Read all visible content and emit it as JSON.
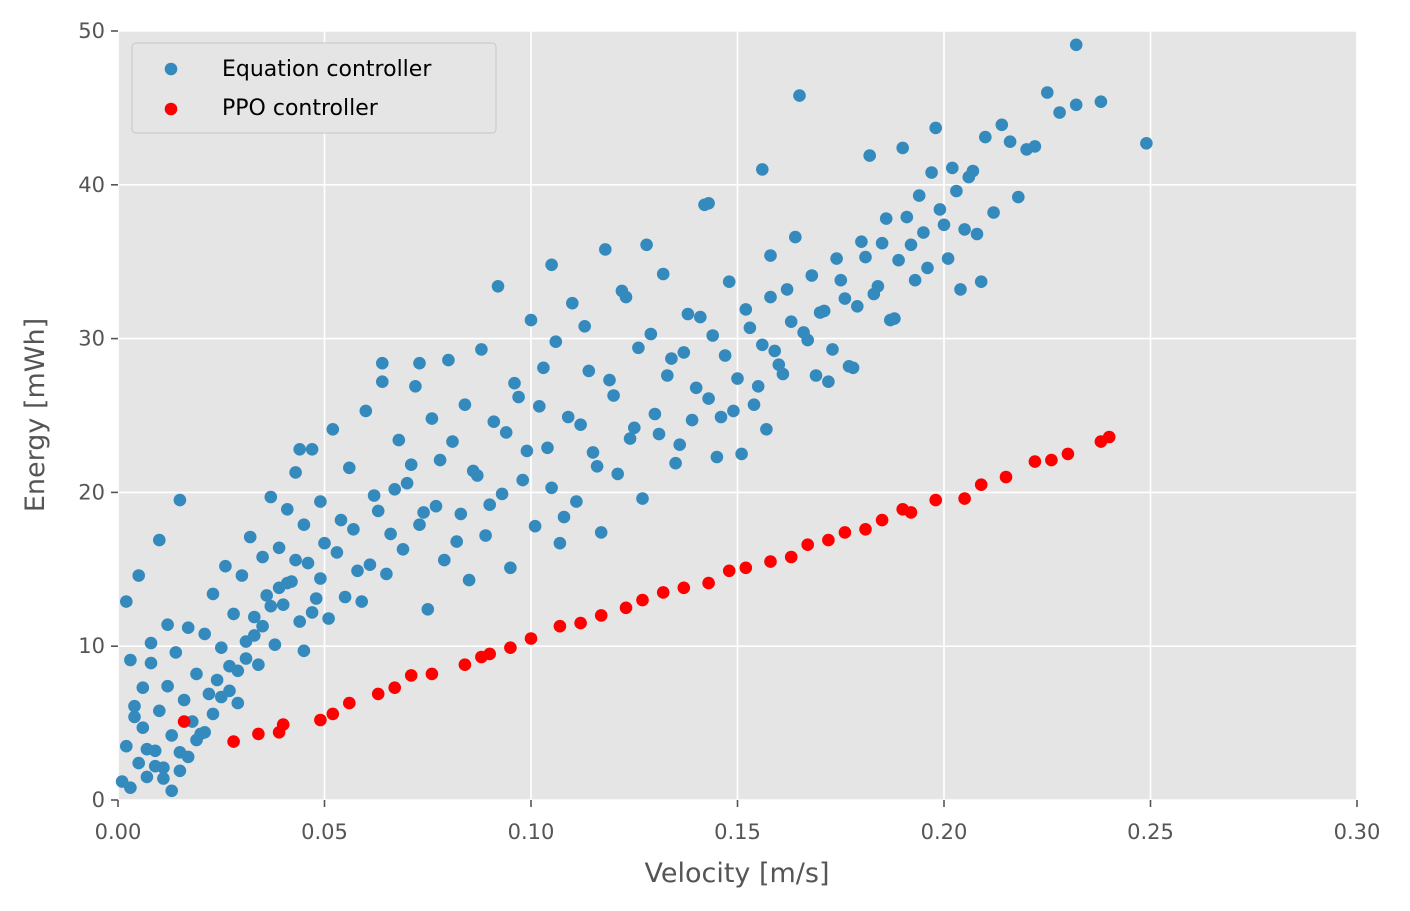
{
  "chart_data": {
    "type": "scatter",
    "title": "",
    "xlabel": "Velocity [m/s]",
    "ylabel": "Energy [mWh]",
    "xlim": [
      0,
      0.3
    ],
    "ylim": [
      0,
      50
    ],
    "xticks": [
      "0.00",
      "0.05",
      "0.10",
      "0.15",
      "0.20",
      "0.25",
      "0.30"
    ],
    "yticks": [
      "0",
      "10",
      "20",
      "30",
      "40",
      "50"
    ],
    "grid": true,
    "legend_position": "top-left",
    "background": "#e5e5e5",
    "series": [
      {
        "name": "Equation controller",
        "color": "#348abd",
        "points": [
          [
            0.001,
            1.2
          ],
          [
            0.002,
            3.5
          ],
          [
            0.003,
            0.8
          ],
          [
            0.004,
            6.1
          ],
          [
            0.005,
            2.4
          ],
          [
            0.006,
            4.7
          ],
          [
            0.007,
            1.5
          ],
          [
            0.008,
            8.9
          ],
          [
            0.009,
            3.2
          ],
          [
            0.01,
            5.8
          ],
          [
            0.011,
            2.1
          ],
          [
            0.012,
            7.4
          ],
          [
            0.013,
            4.2
          ],
          [
            0.014,
            9.6
          ],
          [
            0.015,
            3.1
          ],
          [
            0.016,
            6.5
          ],
          [
            0.017,
            11.2
          ],
          [
            0.018,
            5.1
          ],
          [
            0.019,
            8.2
          ],
          [
            0.02,
            4.3
          ],
          [
            0.021,
            10.8
          ],
          [
            0.022,
            6.9
          ],
          [
            0.023,
            13.4
          ],
          [
            0.024,
            7.8
          ],
          [
            0.025,
            9.9
          ],
          [
            0.026,
            15.2
          ],
          [
            0.027,
            8.7
          ],
          [
            0.028,
            12.1
          ],
          [
            0.029,
            6.3
          ],
          [
            0.03,
            14.6
          ],
          [
            0.031,
            10.3
          ],
          [
            0.032,
            17.1
          ],
          [
            0.033,
            11.9
          ],
          [
            0.034,
            8.8
          ],
          [
            0.035,
            15.8
          ],
          [
            0.036,
            13.3
          ],
          [
            0.037,
            19.7
          ],
          [
            0.038,
            10.1
          ],
          [
            0.039,
            16.4
          ],
          [
            0.04,
            12.7
          ],
          [
            0.041,
            18.9
          ],
          [
            0.042,
            14.2
          ],
          [
            0.043,
            21.3
          ],
          [
            0.044,
            11.6
          ],
          [
            0.045,
            17.9
          ],
          [
            0.046,
            15.4
          ],
          [
            0.047,
            22.8
          ],
          [
            0.048,
            13.1
          ],
          [
            0.049,
            19.4
          ],
          [
            0.05,
            16.7
          ],
          [
            0.052,
            24.1
          ],
          [
            0.054,
            18.2
          ],
          [
            0.056,
            21.6
          ],
          [
            0.058,
            14.9
          ],
          [
            0.06,
            25.3
          ],
          [
            0.062,
            19.8
          ],
          [
            0.064,
            27.2
          ],
          [
            0.066,
            17.3
          ],
          [
            0.068,
            23.4
          ],
          [
            0.07,
            20.6
          ],
          [
            0.072,
            26.9
          ],
          [
            0.074,
            18.7
          ],
          [
            0.076,
            24.8
          ],
          [
            0.078,
            22.1
          ],
          [
            0.08,
            28.6
          ],
          [
            0.082,
            16.8
          ],
          [
            0.084,
            25.7
          ],
          [
            0.086,
            21.4
          ],
          [
            0.088,
            29.3
          ],
          [
            0.09,
            19.2
          ],
          [
            0.092,
            33.4
          ],
          [
            0.094,
            23.9
          ],
          [
            0.096,
            27.1
          ],
          [
            0.098,
            20.8
          ],
          [
            0.1,
            31.2
          ],
          [
            0.102,
            25.6
          ],
          [
            0.104,
            22.9
          ],
          [
            0.106,
            29.8
          ],
          [
            0.108,
            18.4
          ],
          [
            0.11,
            32.3
          ],
          [
            0.112,
            24.4
          ],
          [
            0.114,
            27.9
          ],
          [
            0.116,
            21.7
          ],
          [
            0.118,
            35.8
          ],
          [
            0.12,
            26.3
          ],
          [
            0.122,
            33.1
          ],
          [
            0.124,
            23.5
          ],
          [
            0.126,
            29.4
          ],
          [
            0.128,
            36.1
          ],
          [
            0.13,
            25.1
          ],
          [
            0.132,
            34.2
          ],
          [
            0.134,
            28.7
          ],
          [
            0.136,
            23.1
          ],
          [
            0.138,
            31.6
          ],
          [
            0.14,
            26.8
          ],
          [
            0.142,
            38.7
          ],
          [
            0.144,
            30.2
          ],
          [
            0.146,
            24.9
          ],
          [
            0.148,
            33.7
          ],
          [
            0.15,
            27.4
          ],
          [
            0.152,
            31.9
          ],
          [
            0.154,
            25.7
          ],
          [
            0.156,
            29.6
          ],
          [
            0.158,
            35.4
          ],
          [
            0.16,
            28.3
          ],
          [
            0.162,
            33.2
          ],
          [
            0.164,
            36.6
          ],
          [
            0.165,
            45.8
          ],
          [
            0.166,
            30.4
          ],
          [
            0.168,
            34.1
          ],
          [
            0.17,
            31.7
          ],
          [
            0.172,
            27.2
          ],
          [
            0.174,
            35.2
          ],
          [
            0.176,
            32.6
          ],
          [
            0.178,
            28.1
          ],
          [
            0.18,
            36.3
          ],
          [
            0.182,
            41.9
          ],
          [
            0.184,
            33.4
          ],
          [
            0.186,
            37.8
          ],
          [
            0.188,
            31.3
          ],
          [
            0.19,
            42.4
          ],
          [
            0.192,
            36.1
          ],
          [
            0.194,
            39.3
          ],
          [
            0.196,
            34.6
          ],
          [
            0.198,
            43.7
          ],
          [
            0.2,
            37.4
          ],
          [
            0.202,
            41.1
          ],
          [
            0.204,
            33.2
          ],
          [
            0.206,
            40.5
          ],
          [
            0.208,
            36.8
          ],
          [
            0.21,
            43.1
          ],
          [
            0.212,
            38.2
          ],
          [
            0.214,
            43.9
          ],
          [
            0.216,
            42.8
          ],
          [
            0.218,
            39.2
          ],
          [
            0.22,
            42.3
          ],
          [
            0.222,
            42.5
          ],
          [
            0.225,
            46.0
          ],
          [
            0.228,
            44.7
          ],
          [
            0.232,
            45.2
          ],
          [
            0.232,
            49.1
          ],
          [
            0.238,
            45.4
          ],
          [
            0.249,
            42.7
          ],
          [
            0.156,
            41.0
          ],
          [
            0.143,
            38.8
          ],
          [
            0.158,
            32.7
          ],
          [
            0.064,
            28.4
          ],
          [
            0.073,
            28.4
          ],
          [
            0.105,
            34.8
          ],
          [
            0.044,
            22.8
          ],
          [
            0.015,
            19.5
          ],
          [
            0.01,
            16.9
          ],
          [
            0.005,
            14.6
          ],
          [
            0.002,
            12.9
          ],
          [
            0.012,
            11.4
          ],
          [
            0.008,
            10.2
          ],
          [
            0.003,
            9.1
          ],
          [
            0.006,
            7.3
          ],
          [
            0.004,
            5.4
          ],
          [
            0.007,
            3.3
          ],
          [
            0.009,
            2.2
          ],
          [
            0.011,
            1.4
          ],
          [
            0.013,
            0.6
          ],
          [
            0.015,
            1.9
          ],
          [
            0.017,
            2.8
          ],
          [
            0.019,
            3.9
          ],
          [
            0.021,
            4.4
          ],
          [
            0.023,
            5.6
          ],
          [
            0.025,
            6.7
          ],
          [
            0.027,
            7.1
          ],
          [
            0.029,
            8.4
          ],
          [
            0.031,
            9.2
          ],
          [
            0.033,
            10.7
          ],
          [
            0.035,
            11.3
          ],
          [
            0.037,
            12.6
          ],
          [
            0.039,
            13.8
          ],
          [
            0.041,
            14.1
          ],
          [
            0.043,
            15.6
          ],
          [
            0.045,
            9.7
          ],
          [
            0.047,
            12.2
          ],
          [
            0.049,
            14.4
          ],
          [
            0.051,
            11.8
          ],
          [
            0.053,
            16.1
          ],
          [
            0.055,
            13.2
          ],
          [
            0.057,
            17.6
          ],
          [
            0.059,
            12.9
          ],
          [
            0.061,
            15.3
          ],
          [
            0.063,
            18.8
          ],
          [
            0.065,
            14.7
          ],
          [
            0.067,
            20.2
          ],
          [
            0.069,
            16.3
          ],
          [
            0.071,
            21.8
          ],
          [
            0.073,
            17.9
          ],
          [
            0.075,
            12.4
          ],
          [
            0.077,
            19.1
          ],
          [
            0.079,
            15.6
          ],
          [
            0.081,
            23.3
          ],
          [
            0.083,
            18.6
          ],
          [
            0.085,
            14.3
          ],
          [
            0.087,
            21.1
          ],
          [
            0.089,
            17.2
          ],
          [
            0.091,
            24.6
          ],
          [
            0.093,
            19.9
          ],
          [
            0.095,
            15.1
          ],
          [
            0.097,
            26.2
          ],
          [
            0.099,
            22.7
          ],
          [
            0.101,
            17.8
          ],
          [
            0.103,
            28.1
          ],
          [
            0.105,
            20.3
          ],
          [
            0.107,
            16.7
          ],
          [
            0.109,
            24.9
          ],
          [
            0.111,
            19.4
          ],
          [
            0.113,
            30.8
          ],
          [
            0.115,
            22.6
          ],
          [
            0.117,
            17.4
          ],
          [
            0.119,
            27.3
          ],
          [
            0.121,
            21.2
          ],
          [
            0.123,
            32.7
          ],
          [
            0.125,
            24.2
          ],
          [
            0.127,
            19.6
          ],
          [
            0.129,
            30.3
          ],
          [
            0.131,
            23.8
          ],
          [
            0.133,
            27.6
          ],
          [
            0.135,
            21.9
          ],
          [
            0.137,
            29.1
          ],
          [
            0.139,
            24.7
          ],
          [
            0.141,
            31.4
          ],
          [
            0.143,
            26.1
          ],
          [
            0.145,
            22.3
          ],
          [
            0.147,
            28.9
          ],
          [
            0.149,
            25.3
          ],
          [
            0.151,
            22.5
          ],
          [
            0.153,
            30.7
          ],
          [
            0.155,
            26.9
          ],
          [
            0.157,
            24.1
          ],
          [
            0.159,
            29.2
          ],
          [
            0.161,
            27.7
          ],
          [
            0.163,
            31.1
          ],
          [
            0.167,
            29.9
          ],
          [
            0.169,
            27.6
          ],
          [
            0.171,
            31.8
          ],
          [
            0.173,
            29.3
          ],
          [
            0.175,
            33.8
          ],
          [
            0.177,
            28.2
          ],
          [
            0.179,
            32.1
          ],
          [
            0.181,
            35.3
          ],
          [
            0.183,
            32.9
          ],
          [
            0.185,
            36.2
          ],
          [
            0.187,
            31.2
          ],
          [
            0.189,
            35.1
          ],
          [
            0.191,
            37.9
          ],
          [
            0.193,
            33.8
          ],
          [
            0.195,
            36.9
          ],
          [
            0.197,
            40.8
          ],
          [
            0.199,
            38.4
          ],
          [
            0.201,
            35.2
          ],
          [
            0.203,
            39.6
          ],
          [
            0.205,
            37.1
          ],
          [
            0.207,
            40.9
          ],
          [
            0.209,
            33.7
          ]
        ]
      },
      {
        "name": "PPO controller",
        "color": "#ff0000",
        "points": [
          [
            0.016,
            5.1
          ],
          [
            0.028,
            3.8
          ],
          [
            0.034,
            4.3
          ],
          [
            0.039,
            4.4
          ],
          [
            0.04,
            4.9
          ],
          [
            0.049,
            5.2
          ],
          [
            0.052,
            5.6
          ],
          [
            0.056,
            6.3
          ],
          [
            0.063,
            6.9
          ],
          [
            0.067,
            7.3
          ],
          [
            0.071,
            8.1
          ],
          [
            0.076,
            8.2
          ],
          [
            0.084,
            8.8
          ],
          [
            0.088,
            9.3
          ],
          [
            0.09,
            9.5
          ],
          [
            0.095,
            9.9
          ],
          [
            0.1,
            10.5
          ],
          [
            0.107,
            11.3
          ],
          [
            0.112,
            11.5
          ],
          [
            0.117,
            12.0
          ],
          [
            0.123,
            12.5
          ],
          [
            0.127,
            13.0
          ],
          [
            0.132,
            13.5
          ],
          [
            0.137,
            13.8
          ],
          [
            0.143,
            14.1
          ],
          [
            0.148,
            14.9
          ],
          [
            0.152,
            15.1
          ],
          [
            0.158,
            15.5
          ],
          [
            0.163,
            15.8
          ],
          [
            0.167,
            16.6
          ],
          [
            0.172,
            16.9
          ],
          [
            0.176,
            17.4
          ],
          [
            0.181,
            17.6
          ],
          [
            0.185,
            18.2
          ],
          [
            0.19,
            18.9
          ],
          [
            0.192,
            18.7
          ],
          [
            0.198,
            19.5
          ],
          [
            0.205,
            19.6
          ],
          [
            0.209,
            20.5
          ],
          [
            0.215,
            21.0
          ],
          [
            0.222,
            22.0
          ],
          [
            0.226,
            22.1
          ],
          [
            0.23,
            22.5
          ],
          [
            0.238,
            23.3
          ],
          [
            0.24,
            23.6
          ]
        ]
      }
    ]
  }
}
